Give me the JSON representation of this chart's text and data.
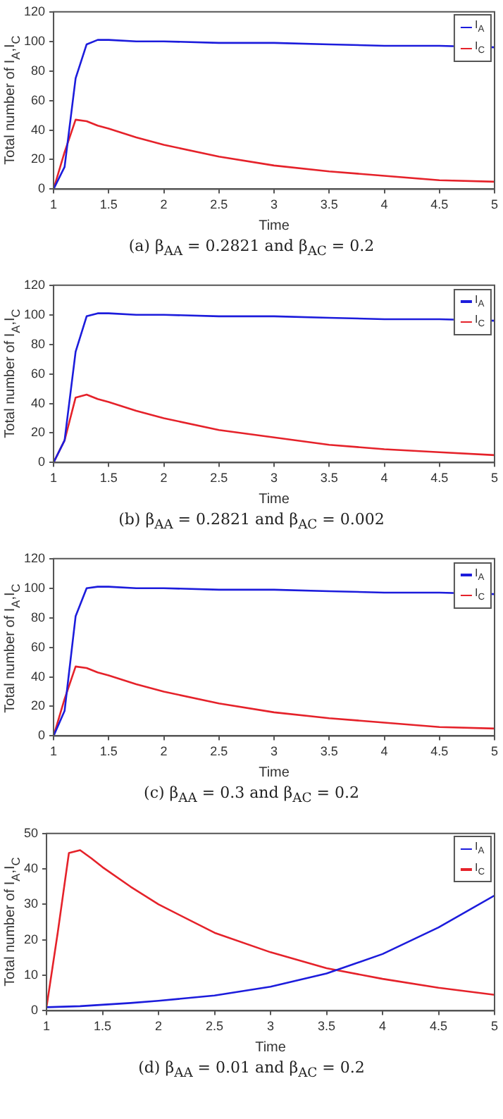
{
  "chart_data": [
    {
      "type": "line",
      "title": "(a) β$_{AA}$ = 0.2821 and β$_{AC}$ = 0.2",
      "xlabel": "Time",
      "ylabel": "Total number of I$_{A}$,I$_{C}$",
      "legend": "top right",
      "x": [
        1,
        1.1,
        1.2,
        1.3,
        1.4,
        1.5,
        1.75,
        2,
        2.5,
        3,
        3.5,
        4,
        4.5,
        5
      ],
      "series": [
        {
          "name": "I$_{A}$",
          "color": "#1c1cdc",
          "values": [
            0,
            15,
            75,
            98,
            101,
            101,
            100,
            100,
            99,
            99,
            98,
            97,
            97,
            96
          ]
        },
        {
          "name": "I$_{C}$",
          "color": "#e5222a",
          "values": [
            0,
            25,
            47,
            46,
            43,
            41,
            35,
            30,
            22,
            16,
            12,
            9,
            6,
            5
          ]
        }
      ],
      "xlim": [
        1,
        5
      ],
      "xticks": [
        1,
        1.5,
        2,
        2.5,
        3,
        3.5,
        4,
        4.5,
        5
      ],
      "ylim": [
        0,
        120
      ],
      "yticks": [
        0,
        20,
        40,
        60,
        80,
        100,
        120
      ]
    },
    {
      "type": "line",
      "title": "(b) β$_{AA}$ = 0.2821 and β$_{AC}$ = 0.002",
      "xlabel": "Time",
      "ylabel": "Total number of I$_{A}$,I$_{C}$",
      "legend": "top right",
      "x": [
        1,
        1.1,
        1.2,
        1.3,
        1.4,
        1.5,
        1.75,
        2,
        2.5,
        3,
        3.5,
        4,
        4.5,
        5
      ],
      "series": [
        {
          "name": "I$_{A}$",
          "color": "#1c1cdc",
          "values": [
            0,
            15,
            75,
            99,
            101,
            101,
            100,
            100,
            99,
            99,
            98,
            97,
            97,
            96
          ]
        },
        {
          "name": "I$_{C}$",
          "color": "#e5222a",
          "values": [
            0,
            15,
            44,
            46,
            43,
            41,
            35,
            30,
            22,
            17,
            12,
            9,
            7,
            5
          ]
        }
      ],
      "xlim": [
        1,
        5
      ],
      "xticks": [
        1,
        1.5,
        2,
        2.5,
        3,
        3.5,
        4,
        4.5,
        5
      ],
      "ylim": [
        0,
        120
      ],
      "yticks": [
        0,
        20,
        40,
        60,
        80,
        100,
        120
      ]
    },
    {
      "type": "line",
      "title": "(c) β$_{AA}$ = 0.3 and β$_{AC}$ = 0.2",
      "xlabel": "Time",
      "ylabel": "Total number of I$_{A}$,I$_{C}$",
      "legend": "top right",
      "x": [
        1,
        1.1,
        1.2,
        1.3,
        1.4,
        1.5,
        1.75,
        2,
        2.5,
        3,
        3.5,
        4,
        4.5,
        5
      ],
      "series": [
        {
          "name": "I$_{A}$",
          "color": "#1c1cdc",
          "values": [
            0,
            17,
            81,
            100,
            101,
            101,
            100,
            100,
            99,
            99,
            98,
            97,
            97,
            96
          ]
        },
        {
          "name": "I$_{C}$",
          "color": "#e5222a",
          "values": [
            0,
            25,
            47,
            46,
            43,
            41,
            35,
            30,
            22,
            16,
            12,
            9,
            6,
            5
          ]
        }
      ],
      "xlim": [
        1,
        5
      ],
      "xticks": [
        1,
        1.5,
        2,
        2.5,
        3,
        3.5,
        4,
        4.5,
        5
      ],
      "ylim": [
        0,
        120
      ],
      "yticks": [
        0,
        20,
        40,
        60,
        80,
        100,
        120
      ]
    },
    {
      "type": "line",
      "title": "(d) β$_{AA}$ = 0.01 and β$_{AC}$ = 0.2",
      "xlabel": "Time",
      "ylabel": "Total number of I$_{A}$,I$_{C}$",
      "legend": "top right",
      "x": [
        1,
        1.1,
        1.2,
        1.3,
        1.4,
        1.5,
        1.75,
        2,
        2.5,
        3,
        3.5,
        4,
        4.5,
        5
      ],
      "series": [
        {
          "name": "I$_{A}$",
          "color": "#1c1cdc",
          "values": [
            1,
            1.1,
            1.2,
            1.3,
            1.5,
            1.7,
            2.2,
            2.8,
            4.3,
            6.8,
            10.5,
            16,
            23.5,
            32.5
          ]
        },
        {
          "name": "I$_{C}$",
          "color": "#e5222a",
          "values": [
            1,
            22,
            44.5,
            45.3,
            43,
            40.5,
            35,
            30,
            22,
            16.5,
            12,
            9,
            6.5,
            4.5
          ]
        }
      ],
      "xlim": [
        1,
        5
      ],
      "xticks": [
        1,
        1.5,
        2,
        2.5,
        3,
        3.5,
        4,
        4.5,
        5
      ],
      "ylim": [
        0,
        50
      ],
      "yticks": [
        0,
        10,
        20,
        30,
        40,
        50
      ]
    }
  ]
}
